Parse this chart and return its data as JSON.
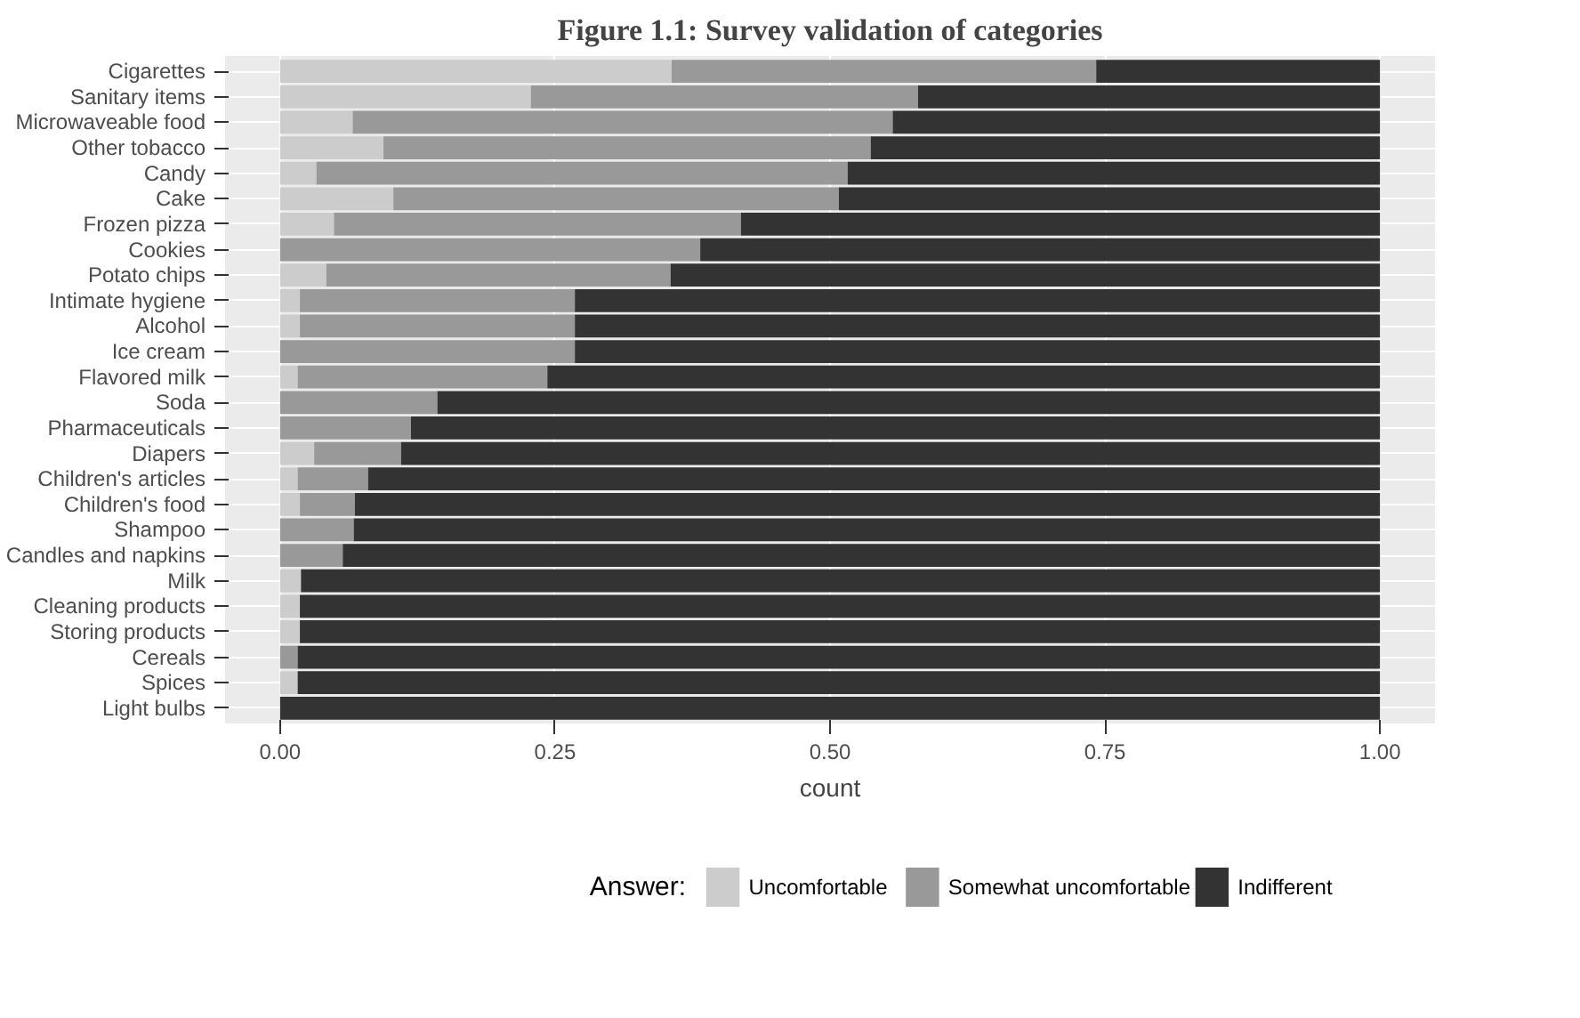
{
  "chart_data": {
    "type": "bar",
    "orientation": "horizontal",
    "stacked": true,
    "title": "Figure 1.1: Survey validation of categories",
    "xlabel": "count",
    "legend_title": "Answer:",
    "categories": [
      "Cigarettes",
      "Sanitary items",
      "Microwaveable food",
      "Other tobacco",
      "Candy",
      "Cake",
      "Frozen pizza",
      "Cookies",
      "Potato chips",
      "Intimate hygiene",
      "Alcohol",
      "Ice cream",
      "Flavored milk",
      "Soda",
      "Pharmaceuticals",
      "Diapers",
      "Children's articles",
      "Children's food",
      "Shampoo",
      "Candles and napkins",
      "Milk",
      "Cleaning products",
      "Storing products",
      "Cereals",
      "Spices",
      "Light bulbs"
    ],
    "series": [
      {
        "name": "Uncomfortable",
        "color": "#cccccc",
        "values": [
          0.356,
          0.228,
          0.066,
          0.094,
          0.033,
          0.103,
          0.049,
          0,
          0.042,
          0.018,
          0.018,
          0,
          0.016,
          0,
          0,
          0.031,
          0.016,
          0.018,
          0,
          0,
          0.019,
          0.018,
          0.018,
          0,
          0.016,
          0
        ]
      },
      {
        "name": "Somewhat uncomfortable",
        "color": "#999999",
        "values": [
          0.386,
          0.352,
          0.491,
          0.443,
          0.483,
          0.405,
          0.37,
          0.382,
          0.313,
          0.25,
          0.25,
          0.268,
          0.227,
          0.143,
          0.119,
          0.079,
          0.064,
          0.05,
          0.067,
          0.057,
          0,
          0,
          0,
          0.016,
          0,
          0
        ]
      },
      {
        "name": "Indifferent",
        "color": "#333333",
        "values": [
          0.258,
          0.42,
          0.443,
          0.463,
          0.484,
          0.492,
          0.581,
          0.618,
          0.645,
          0.732,
          0.732,
          0.732,
          0.757,
          0.857,
          0.881,
          0.89,
          0.92,
          0.932,
          0.933,
          0.943,
          0.981,
          0.982,
          0.982,
          0.984,
          0.984,
          1
        ]
      }
    ],
    "xlim": [
      -0.05,
      1.05
    ],
    "xticks": [
      {
        "value": 0,
        "label": "0.00"
      },
      {
        "value": 0.25,
        "label": "0.25"
      },
      {
        "value": 0.5,
        "label": "0.50"
      },
      {
        "value": 0.75,
        "label": "0.75"
      },
      {
        "value": 1,
        "label": "1.00"
      }
    ],
    "grid": true,
    "legend": "bottom"
  }
}
